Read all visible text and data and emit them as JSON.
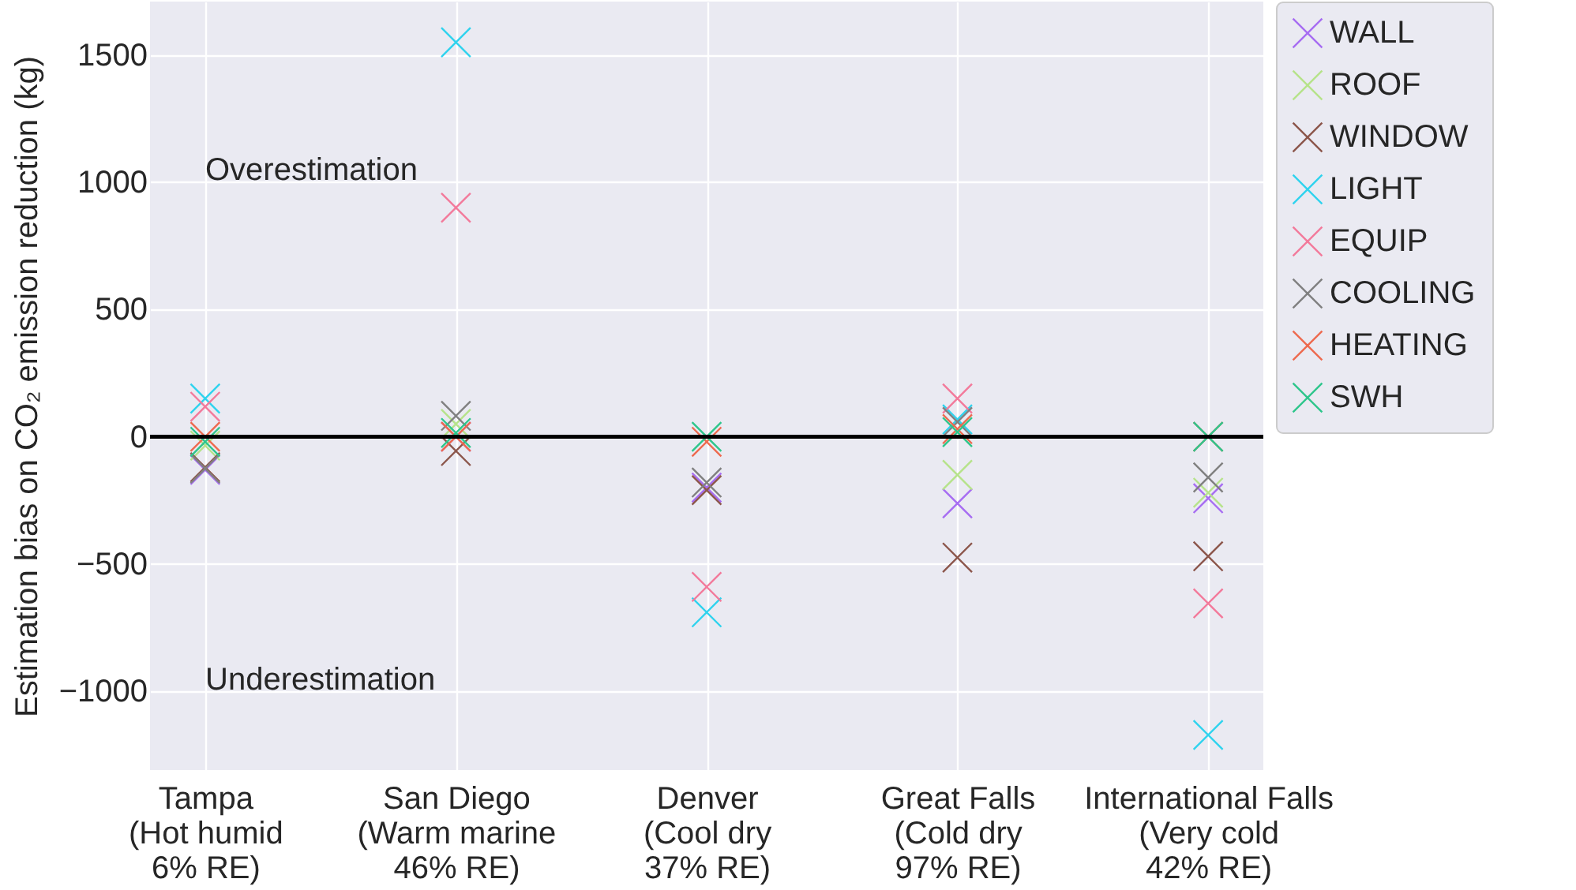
{
  "chart_data": {
    "type": "scatter",
    "ylabel": "Estimation bias on CO₂ emission reduction (kg)",
    "categories": [
      "Tampa\n(Hot humid\n6% RE)",
      "San Diego\n(Warm marine\n46% RE)",
      "Denver\n(Cool dry\n37% RE)",
      "Great Falls\n(Cold dry\n97% RE)",
      "International Falls\n(Very cold\n42% RE)"
    ],
    "series": [
      {
        "name": "WALL",
        "color": "#a76df2",
        "values": [
          -130,
          0,
          -200,
          -262,
          -242
        ]
      },
      {
        "name": "ROOF",
        "color": "#b6e38a",
        "values": [
          -35,
          50,
          null,
          -150,
          -220
        ]
      },
      {
        "name": "WINDOW",
        "color": "#8c564b",
        "values": [
          -120,
          -56,
          -210,
          -475,
          -470
        ]
      },
      {
        "name": "LIGHT",
        "color": "#2fd3ee",
        "values": [
          150,
          1550,
          -690,
          68,
          -1172
        ]
      },
      {
        "name": "EQUIP",
        "color": "#f37a9b",
        "values": [
          118,
          900,
          -590,
          150,
          -655
        ]
      },
      {
        "name": "COOLING",
        "color": "#808080",
        "values": [
          -125,
          82,
          -180,
          58,
          -160
        ]
      },
      {
        "name": "HEATING",
        "color": "#ee6a4f",
        "values": [
          0,
          0,
          -20,
          30,
          0
        ]
      },
      {
        "name": "SWH",
        "color": "#2ec68c",
        "values": [
          -20,
          15,
          0,
          18,
          0
        ]
      }
    ],
    "ylim": [
      -1310,
      1710
    ],
    "yticks": [
      -1000,
      -500,
      0,
      500,
      1000,
      1500
    ],
    "ref_lines": [
      {
        "axis": "y",
        "value": 0,
        "color": "#000000"
      }
    ],
    "annotations": [
      "Overestimation",
      "Underestimation"
    ],
    "grid": true,
    "legend": "top right",
    "marker": "cross"
  }
}
